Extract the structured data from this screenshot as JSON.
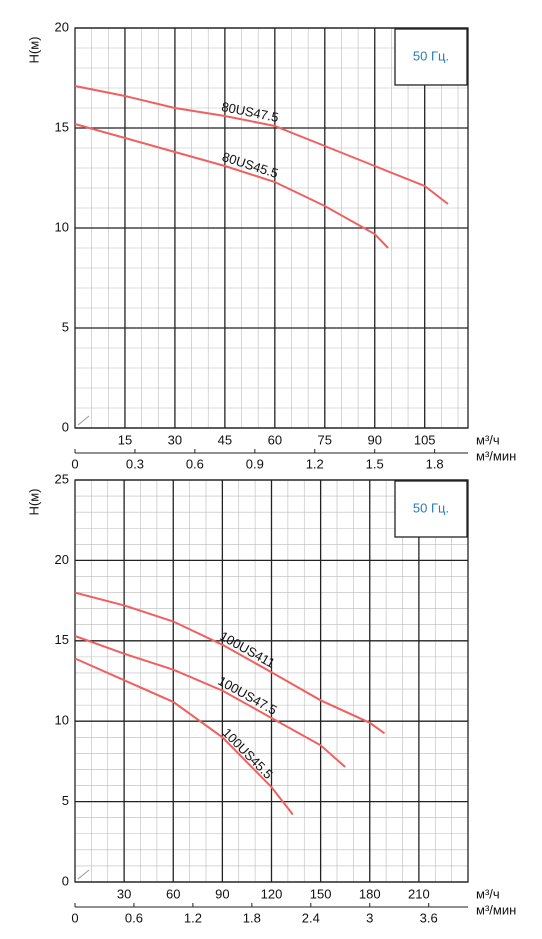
{
  "chart_data": [
    {
      "type": "line",
      "ylabel": "H(м)",
      "xlabel": "м³/ч",
      "x2label": "м³/мин",
      "annotation": "50 Гц.",
      "xlim": [
        0,
        118
      ],
      "xticks": [
        15,
        30,
        45,
        60,
        75,
        90,
        105
      ],
      "x2lim": [
        0,
        1.967
      ],
      "x2ticks": [
        0,
        0.3,
        0.6,
        0.9,
        1.2,
        1.5,
        1.8
      ],
      "ylim": [
        0,
        20
      ],
      "yticks": [
        0,
        5,
        10,
        15,
        20
      ],
      "series": [
        {
          "name": "80US47.5",
          "color": "#f06060",
          "x": [
            0,
            15,
            30,
            45,
            60,
            75,
            90,
            105,
            112
          ],
          "values": [
            17.1,
            16.6,
            16.0,
            15.6,
            15.1,
            14.1,
            13.1,
            12.1,
            11.2
          ]
        },
        {
          "name": "80US45.5",
          "color": "#f06060",
          "x": [
            0,
            15,
            30,
            45,
            60,
            75,
            90,
            94
          ],
          "values": [
            15.2,
            14.5,
            13.8,
            13.1,
            12.3,
            11.1,
            9.7,
            9.0
          ]
        }
      ]
    },
    {
      "type": "line",
      "ylabel": "H(м)",
      "xlabel": "м³/ч",
      "x2label": "м³/мин",
      "annotation": "50 Гц.",
      "xlim": [
        0,
        240
      ],
      "xticks": [
        30,
        60,
        90,
        120,
        150,
        180,
        210
      ],
      "x2lim": [
        0,
        4.0
      ],
      "x2ticks": [
        0,
        0.6,
        1.2,
        1.8,
        2.4,
        3.0,
        3.6
      ],
      "ylim": [
        0,
        25
      ],
      "yticks": [
        0,
        5,
        10,
        15,
        20,
        25
      ],
      "series": [
        {
          "name": "100US411",
          "color": "#f06060",
          "x": [
            0,
            30,
            60,
            90,
            120,
            150,
            180,
            189
          ],
          "values": [
            18.0,
            17.2,
            16.2,
            14.75,
            13.05,
            11.3,
            9.9,
            9.25
          ]
        },
        {
          "name": "100US47.5",
          "color": "#f06060",
          "x": [
            0,
            30,
            60,
            90,
            120,
            150,
            165
          ],
          "values": [
            15.3,
            14.2,
            13.2,
            11.9,
            10.2,
            8.5,
            7.15
          ]
        },
        {
          "name": "100US45.5",
          "color": "#f06060",
          "x": [
            0,
            30,
            60,
            90,
            120,
            133
          ],
          "values": [
            13.9,
            12.55,
            11.2,
            9.0,
            5.9,
            4.2
          ]
        }
      ]
    }
  ]
}
